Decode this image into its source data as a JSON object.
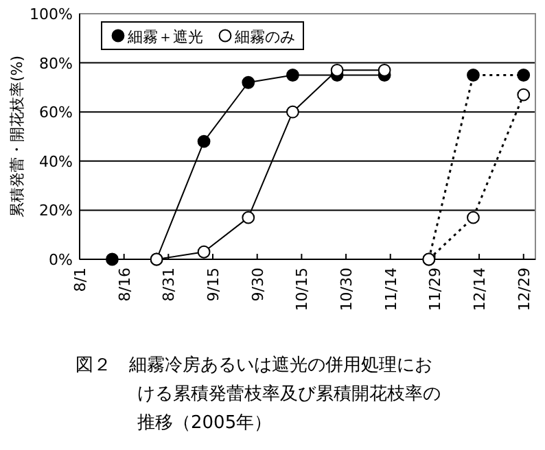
{
  "chart_data": {
    "type": "line",
    "ylabel": "累積発蕾・開花枝率(%)",
    "xlim": [
      "2005-08-01",
      "2006-01-02"
    ],
    "xticks": [
      {
        "value": "2005-08-01",
        "label": "8/1"
      },
      {
        "value": "2005-08-16",
        "label": "8/16"
      },
      {
        "value": "2005-08-31",
        "label": "8/31"
      },
      {
        "value": "2005-09-15",
        "label": "9/15"
      },
      {
        "value": "2005-09-30",
        "label": "9/30"
      },
      {
        "value": "2005-10-15",
        "label": "10/15"
      },
      {
        "value": "2005-10-30",
        "label": "10/30"
      },
      {
        "value": "2005-11-14",
        "label": "11/14"
      },
      {
        "value": "2005-11-29",
        "label": "11/29"
      },
      {
        "value": "2005-12-14",
        "label": "12/14"
      },
      {
        "value": "2005-12-29",
        "label": "12/29"
      }
    ],
    "ylim": [
      0,
      100
    ],
    "yticks": [
      {
        "value": 0,
        "label": "0%"
      },
      {
        "value": 20,
        "label": "20%"
      },
      {
        "value": 40,
        "label": "40%"
      },
      {
        "value": 60,
        "label": "60%"
      },
      {
        "value": 80,
        "label": "80%"
      },
      {
        "value": 100,
        "label": "100%"
      }
    ],
    "grid": "y",
    "legend": "top left",
    "marker": "circle",
    "series": [
      {
        "name": "細霧＋遮光",
        "color": "#000000",
        "line_style": "solid",
        "x": [
          "2005-08-12",
          "2005-08-27",
          "2005-09-12",
          "2005-09-27",
          "2005-10-12",
          "2005-10-27",
          "2005-11-12"
        ],
        "values": [
          0,
          0,
          48,
          72,
          75,
          75,
          75
        ]
      },
      {
        "name": "細霧のみ",
        "color": "#ffffff",
        "line_style": "solid",
        "x": [
          "2005-08-27",
          "2005-09-12",
          "2005-09-27",
          "2005-10-12",
          "2005-10-27",
          "2005-11-12"
        ],
        "values": [
          0,
          3,
          17,
          60,
          77,
          77
        ]
      },
      {
        "color": "#000000",
        "line_style": "dotted",
        "x": [
          "2005-11-27",
          "2005-12-12",
          "2005-12-29"
        ],
        "values": [
          0,
          75,
          75
        ]
      },
      {
        "color": "#ffffff",
        "line_style": "dotted",
        "x": [
          "2005-11-27",
          "2005-12-12",
          "2005-12-29"
        ],
        "values": [
          0,
          17,
          67
        ]
      }
    ],
    "annotations": [
      "図２　細霧冷房あるいは遮光の併用処理における累積発蕾枝率及び累積開花枝率の推移（2005年）"
    ]
  }
}
